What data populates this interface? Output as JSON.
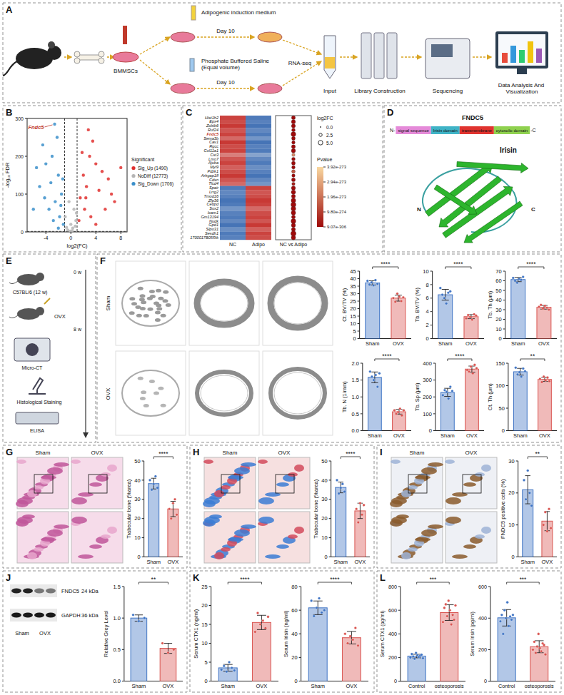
{
  "panel_labels": [
    "A",
    "B",
    "C",
    "D",
    "E",
    "F",
    "G",
    "H",
    "I",
    "J",
    "K",
    "L"
  ],
  "workflow_a": {
    "cells": "BMMSCs",
    "induction": "Adipogenic induction medium",
    "day_top": "Day 10",
    "control": "Phosphate Buffered Saline (Equal volume)",
    "day_bottom": "Day 10",
    "method": "RNA-seq",
    "input": "Input",
    "library": "Library Construction",
    "sequencing": "Sequencing",
    "analysis": "Data Analysis And Visualization"
  },
  "domain_d": {
    "protein": "FNDC5",
    "n_term": "N-",
    "c_term": "-C",
    "domains": [
      {
        "label": "signal sequence",
        "color": "#e58ad9"
      },
      {
        "label": "Irisin domain",
        "color": "#3fb3c6"
      },
      {
        "label": "transmembrane",
        "color": "#e0332f"
      },
      {
        "label": "cytosolic domain",
        "color": "#8fd14f"
      }
    ],
    "structure_label": "Irisin",
    "structure_ends": [
      "N",
      "C"
    ]
  },
  "workflow_e": {
    "strain": "C57BL/6 (12 w)",
    "start": "0 w",
    "surgery": "OVX",
    "end": "8 w",
    "assays": [
      "Micro-CT",
      "Histological Staining",
      "ELISA"
    ]
  },
  "microct": {
    "groups": [
      "Sham",
      "OVX"
    ]
  },
  "histology": [
    {
      "groups": [
        "Sham",
        "OVX"
      ]
    },
    {
      "groups": [
        "Sham",
        "OVX"
      ]
    },
    {
      "groups": [
        "Sham",
        "OVX"
      ]
    }
  ],
  "western": {
    "proteins": [
      "FNDC5",
      "GAPDH"
    ],
    "sizes": [
      "24 kDa",
      "36 kDa"
    ],
    "groups": [
      "Sham",
      "OVX"
    ]
  },
  "chart_data": [
    {
      "type": "scatter",
      "x_label": "log2(FC)",
      "y_label": "-log₁₀ FDR",
      "xlim": [
        -7,
        9
      ],
      "xticks": [
        -4,
        0,
        4,
        8
      ],
      "ylim": [
        0,
        300
      ],
      "yticks": [
        0,
        100,
        200,
        300
      ],
      "thresholds": {
        "x": [
          -1,
          1
        ],
        "y": 1.3
      },
      "legend": "right",
      "legend_title": "Significant",
      "series": [
        {
          "name": "Sig_Up (1490)",
          "color": "#e0302f",
          "x": [
            2,
            3,
            4,
            2.5,
            1.5,
            5,
            6,
            7,
            3.5,
            2.2,
            4.5,
            1.3,
            8,
            2.8,
            5.5,
            1.8,
            3.2,
            6.5,
            4,
            2.4
          ],
          "values": [
            150,
            200,
            180,
            120,
            90,
            160,
            140,
            80,
            240,
            60,
            110,
            30,
            170,
            270,
            60,
            210,
            40,
            100,
            20,
            90
          ]
        },
        {
          "name": "NoDiff (12773)",
          "color": "#b5b5b5",
          "x": [
            -0.5,
            0.3,
            0.8,
            -0.9,
            0,
            0.5,
            -0.3,
            0.7,
            -0.7,
            0.2,
            -0.1,
            0.9
          ],
          "values": [
            5,
            10,
            30,
            40,
            20,
            60,
            80,
            15,
            12,
            3,
            2,
            50
          ]
        },
        {
          "name": "Sig_Down (1706)",
          "color": "#3b8fca",
          "x": [
            -2.6,
            -3,
            -4,
            -2,
            -1.5,
            -5,
            -2.5,
            -3.5,
            -1.8,
            -1.2,
            -4.5,
            -2.2,
            -6,
            -3.2,
            -1.6,
            -2.8,
            -4.2,
            -1.3,
            -5.5,
            -2
          ],
          "values": [
            285,
            200,
            180,
            150,
            100,
            120,
            80,
            60,
            40,
            20,
            230,
            250,
            60,
            130,
            70,
            30,
            90,
            140,
            170,
            10
          ]
        }
      ],
      "annotation": {
        "text": "Fndc5",
        "x": -2.6,
        "y": 285
      }
    },
    {
      "type": "heatmap",
      "rows": [
        "Hist1h2",
        "Epx4",
        "Zcbtb6",
        "Ruf24",
        "Fndc5",
        "Sema3b",
        "Cav1",
        "Rgcc",
        "Col11a1",
        "Cst3",
        "Lmo7",
        "Ajuba",
        "Myl9",
        "Pdzk1",
        "Arhgap18",
        "Cdsn",
        "Tlcd4",
        "Spair",
        "Lrrg2",
        "Tmod16",
        "Zfp36",
        "Cebpd",
        "Sox2",
        "Icam1",
        "Gm13194",
        "Nudk",
        "Gpd1",
        "Slpo31",
        "Sesdh1",
        "1700017B05Rik"
      ],
      "highlight": "Fndc5",
      "columns": [
        "NC",
        "Adipo"
      ],
      "zlim": [
        -1,
        1
      ],
      "cells": [
        [
          0.9,
          -0.9
        ],
        [
          0.85,
          -0.85
        ],
        [
          0.95,
          -0.95
        ],
        [
          0.8,
          -0.8
        ],
        [
          0.9,
          -0.9
        ],
        [
          0.7,
          -0.7
        ],
        [
          0.95,
          -0.95
        ],
        [
          0.85,
          -0.85
        ],
        [
          0.9,
          -0.9
        ],
        [
          0.6,
          -0.6
        ],
        [
          0.8,
          -0.8
        ],
        [
          0.9,
          -0.9
        ],
        [
          0.75,
          -0.75
        ],
        [
          0.85,
          -0.85
        ],
        [
          0.95,
          -0.95
        ],
        [
          0.8,
          -0.8
        ],
        [
          0.7,
          -0.7
        ],
        [
          -0.9,
          0.9
        ],
        [
          -0.8,
          0.8
        ],
        [
          -0.85,
          0.85
        ],
        [
          -0.95,
          0.95
        ],
        [
          -0.9,
          0.9
        ],
        [
          -0.7,
          0.7
        ],
        [
          -0.85,
          0.85
        ],
        [
          -0.9,
          0.9
        ],
        [
          -0.8,
          0.8
        ],
        [
          -0.95,
          0.95
        ],
        [
          -0.75,
          0.75
        ],
        [
          -0.9,
          0.9
        ],
        [
          -0.85,
          0.85
        ]
      ],
      "bubble_label": "NC vs Adipo",
      "log2fc": [
        -3.5,
        -4,
        -3.8,
        -3,
        -5.5,
        -3.2,
        -2.8,
        -3.6,
        -4.2,
        -2.5,
        -3,
        -3.3,
        -2.9,
        -3.1,
        -2.7,
        -3.4,
        -2.6,
        4,
        4.5,
        3.8,
        5,
        6,
        5.2,
        4.8,
        3.5,
        5.5,
        4.2,
        3.9,
        6.5,
        4.6
      ],
      "pvalues": [
        5e-290,
        3e-295,
        2e-285,
        6e-280,
        1e-300,
        4e-288,
        7e-292,
        2e-281,
        5e-296,
        2.5e-273,
        3e-287,
        6e-299,
        1e-284,
        1.5e-273,
        4e-290,
        2e-286,
        4e-274,
        3e-298,
        5e-293,
        2e-289,
        6e-301,
        1e-303,
        3e-297,
        7e-291,
        2e-283,
        4e-300,
        8e-294,
        5e-288,
        2e-302,
        6e-296
      ],
      "size_title": "log2FC",
      "size_ticks": [
        {
          "value": 0,
          "label": "0.0"
        },
        {
          "value": 2.5,
          "label": "2.5"
        },
        {
          "value": 5,
          "label": "5.0"
        }
      ],
      "color_title": "Pvalue",
      "color_range": [
        9.07e-306,
        3.92e-273
      ],
      "color_ticks": [
        {
          "value": 3.92e-273,
          "label": "3.92e-273"
        },
        {
          "value": 2.94e-273,
          "label": "2.94e-273"
        },
        {
          "value": 1.96e-273,
          "label": "1.96e-273"
        },
        {
          "value": 9.8e-274,
          "label": "9.80e-274"
        },
        {
          "value": 9.07e-306,
          "label": "9.07e-306"
        }
      ]
    },
    {
      "type": "bar",
      "y_label": "Ct. BV/TV (%)",
      "categories": [
        "Sham",
        "OVX"
      ],
      "values": [
        37.2,
        27.0
      ],
      "errors": [
        1.4,
        2.0
      ],
      "points": [
        [
          38.5,
          36,
          37.5,
          35.5,
          39,
          36.5
        ],
        [
          27,
          24.5,
          30,
          28,
          25,
          27.5
        ]
      ],
      "colors": [
        "#3f74c4",
        "#d9534f"
      ],
      "ylim": [
        0,
        45
      ],
      "yticks": [
        0,
        5,
        10,
        15,
        20,
        25,
        30,
        35,
        40,
        45
      ],
      "significance": "****"
    },
    {
      "type": "bar",
      "y_label": "Tb. BV/TV (%)",
      "categories": [
        "Sham",
        "OVX"
      ],
      "values": [
        6.5,
        3.25
      ],
      "errors": [
        0.8,
        0.3
      ],
      "points": [
        [
          7.5,
          6.5,
          6,
          5.2,
          6.8,
          7.0
        ],
        [
          3.0,
          3.5,
          3.2,
          2.8,
          3.6,
          3.4
        ]
      ],
      "colors": [
        "#3f74c4",
        "#d9534f"
      ],
      "ylim": [
        0,
        10
      ],
      "yticks": [
        0,
        2,
        4,
        6,
        8,
        10
      ],
      "significance": "****"
    },
    {
      "type": "bar",
      "y_label": "Tb. Th (μm)",
      "categories": [
        "Sham",
        "OVX"
      ],
      "values": [
        61.3,
        32.5
      ],
      "errors": [
        2.2,
        1.9
      ],
      "points": [
        [
          63,
          60,
          58,
          62,
          61,
          64
        ],
        [
          33,
          35,
          31,
          34,
          32,
          30
        ]
      ],
      "colors": [
        "#3f74c4",
        "#d9534f"
      ],
      "ylim": [
        0,
        70
      ],
      "yticks": [
        0,
        10,
        20,
        30,
        40,
        50,
        60,
        70
      ],
      "significance": "****"
    },
    {
      "type": "bar",
      "y_label": "Tb. N (1/mm)",
      "categories": [
        "Sham",
        "OVX"
      ],
      "values": [
        1.58,
        0.56
      ],
      "errors": [
        0.16,
        0.07
      ],
      "points": [
        [
          1.75,
          1.6,
          1.5,
          1.65,
          1.3,
          1.7
        ],
        [
          0.6,
          0.5,
          0.55,
          0.65,
          0.45,
          0.6
        ]
      ],
      "colors": [
        "#3f74c4",
        "#d9534f"
      ],
      "ylim": [
        0,
        2
      ],
      "yticks": [
        {
          "value": 0,
          "label": "0.0"
        },
        {
          "value": 0.5,
          "label": "0.5"
        },
        {
          "value": 1,
          "label": "1.0"
        },
        {
          "value": 1.5,
          "label": "1.5"
        },
        {
          "value": 2,
          "label": "2.0"
        }
      ],
      "significance": "****"
    },
    {
      "type": "bar",
      "y_label": "Tb. Sp (μm)",
      "categories": [
        "Sham",
        "OVX"
      ],
      "values": [
        227,
        365
      ],
      "errors": [
        24,
        18
      ],
      "points": [
        [
          210,
          240,
          230,
          190,
          260,
          235
        ],
        [
          360,
          350,
          380,
          340,
          390,
          370
        ]
      ],
      "colors": [
        "#3f74c4",
        "#d9534f"
      ],
      "ylim": [
        0,
        400
      ],
      "yticks": [
        0,
        100,
        200,
        300,
        400
      ],
      "significance": "****"
    },
    {
      "type": "bar",
      "y_label": "Ct. Th (μm)",
      "categories": [
        "Sham",
        "OVX"
      ],
      "values": [
        131,
        114
      ],
      "errors": [
        7.5,
        4.6
      ],
      "points": [
        [
          140,
          125,
          130,
          120,
          138,
          132
        ],
        [
          115,
          108,
          120,
          112,
          118,
          110
        ]
      ],
      "colors": [
        "#3f74c4",
        "#d9534f"
      ],
      "ylim": [
        0,
        150
      ],
      "yticks": [
        0,
        50,
        100,
        150
      ],
      "significance": "**"
    },
    {
      "type": "bar",
      "y_label": "Trabecular bone (%area)",
      "categories": [
        "Sham",
        "OVX"
      ],
      "values": [
        38.2,
        25
      ],
      "errors": [
        2.8,
        4
      ],
      "points": [
        [
          40,
          35,
          38,
          42,
          36
        ],
        [
          25,
          20,
          28,
          30,
          22
        ]
      ],
      "colors": [
        "#3f74c4",
        "#d9534f"
      ],
      "ylim": [
        0,
        50
      ],
      "yticks": [
        0,
        10,
        20,
        30,
        40,
        50
      ],
      "significance": "****"
    },
    {
      "type": "bar",
      "y_label": "Trabecular bone (%area)",
      "categories": [
        "Sham",
        "OVX"
      ],
      "values": [
        36.2,
        24
      ],
      "errors": [
        2.8,
        4
      ],
      "points": [
        [
          40,
          33,
          36,
          38,
          34
        ],
        [
          25,
          18,
          28,
          22,
          27
        ]
      ],
      "colors": [
        "#3f74c4",
        "#d9534f"
      ],
      "ylim": [
        0,
        50
      ],
      "yticks": [
        0,
        10,
        20,
        30,
        40,
        50
      ],
      "significance": "****"
    },
    {
      "type": "bar",
      "y_label": "FNDC5 positive cells (%)",
      "categories": [
        "Sham",
        "OVX"
      ],
      "values": [
        21,
        11.2
      ],
      "errors": [
        4.4,
        3
      ],
      "points": [
        [
          24,
          18,
          27,
          20,
          16
        ],
        [
          10,
          14,
          8,
          15,
          9
        ]
      ],
      "colors": [
        "#3f74c4",
        "#d9534f"
      ],
      "ylim": [
        0,
        30
      ],
      "yticks": [
        0,
        10,
        20,
        30
      ],
      "significance": "**"
    },
    {
      "type": "bar",
      "y_label": "Relative Grey Level",
      "categories": [
        "Sham",
        "OVX"
      ],
      "values": [
        1.0,
        0.52
      ],
      "errors": [
        0.05,
        0.08
      ],
      "points": [
        [
          1.05,
          0.95,
          1.0
        ],
        [
          0.6,
          0.45,
          0.5
        ]
      ],
      "colors": [
        "#3f74c4",
        "#d9534f"
      ],
      "ylim": [
        0,
        1.5
      ],
      "yticks": [
        {
          "value": 0,
          "label": "0.0"
        },
        {
          "value": 0.5,
          "label": "0.5"
        },
        {
          "value": 1,
          "label": "1.0"
        },
        {
          "value": 1.5,
          "label": "1.5"
        }
      ],
      "significance": "**"
    },
    {
      "type": "bar",
      "y_label": "Serum CTX1 (ng/ml)",
      "categories": [
        "Sham",
        "OVX"
      ],
      "values": [
        3.5,
        15.5
      ],
      "errors": [
        0.9,
        1.9
      ],
      "points": [
        [
          3,
          4,
          2.5,
          5,
          3.5,
          2.8
        ],
        [
          13,
          18,
          15,
          16,
          14,
          17
        ]
      ],
      "colors": [
        "#3f74c4",
        "#d9534f"
      ],
      "ylim": [
        0,
        25
      ],
      "yticks": [
        0,
        5,
        10,
        15,
        20,
        25
      ],
      "significance": "****"
    },
    {
      "type": "bar",
      "y_label": "Serum Irisin (ng/ml)",
      "categories": [
        "Sham",
        "OVX"
      ],
      "values": [
        62,
        36.7
      ],
      "errors": [
        5.8,
        5.3
      ],
      "points": [
        [
          68,
          55,
          62,
          70,
          58,
          60
        ],
        [
          40,
          32,
          38,
          35,
          45,
          30
        ]
      ],
      "colors": [
        "#3f74c4",
        "#d9534f"
      ],
      "ylim": [
        0,
        80
      ],
      "yticks": [
        0,
        20,
        40,
        60,
        80
      ],
      "significance": "****"
    },
    {
      "type": "bar",
      "y_label": "Serum CTX1 (pg/ml)",
      "categories": [
        "Control",
        "osteoporosis"
      ],
      "values": [
        213,
        580
      ],
      "errors": [
        15,
        66
      ],
      "points": [
        [
          200,
          230,
          210,
          190,
          240,
          220,
          205,
          215,
          225,
          195
        ],
        [
          500,
          620,
          650,
          550,
          680,
          600,
          480,
          560,
          520,
          640
        ]
      ],
      "colors": [
        "#3f74c4",
        "#d9534f"
      ],
      "ylim": [
        0,
        800
      ],
      "yticks": [
        0,
        200,
        400,
        600,
        800
      ],
      "significance": "***"
    },
    {
      "type": "bar",
      "y_label": "Serum Irisin (pg/ml)",
      "categories": [
        "Control",
        "osteoporosis"
      ],
      "values": [
        402,
        219
      ],
      "errors": [
        52,
        38
      ],
      "points": [
        [
          380,
          420,
          300,
          450,
          400,
          500,
          350,
          410,
          390,
          420
        ],
        [
          200,
          250,
          180,
          220,
          300,
          210,
          190,
          240,
          230,
          170
        ]
      ],
      "colors": [
        "#3f74c4",
        "#d9534f"
      ],
      "ylim": [
        0,
        600
      ],
      "yticks": [
        0,
        200,
        400,
        600
      ],
      "significance": "***"
    }
  ]
}
